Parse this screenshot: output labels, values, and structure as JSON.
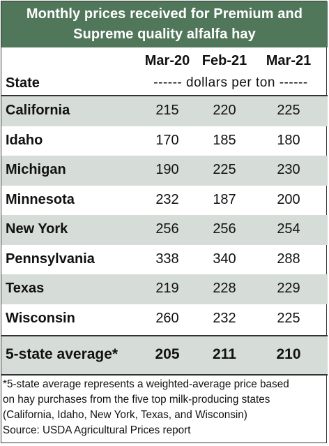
{
  "chart_data": {
    "type": "table",
    "title": [
      "Monthly prices received for Premium and",
      "Supreme quality alfalfa hay"
    ],
    "columns": [
      "Mar-20",
      "Feb-21",
      "Mar-21"
    ],
    "row_header": "State",
    "unit_label": "------ dollars per ton ------",
    "rows": [
      {
        "state": "California",
        "values": [
          "215",
          "220",
          "225"
        ]
      },
      {
        "state": "Idaho",
        "values": [
          "170",
          "185",
          "180"
        ]
      },
      {
        "state": "Michigan",
        "values": [
          "190",
          "225",
          "230"
        ]
      },
      {
        "state": "Minnesota",
        "values": [
          "232",
          "187",
          "200"
        ]
      },
      {
        "state": "New York",
        "values": [
          "256",
          "256",
          "254"
        ]
      },
      {
        "state": "Pennsylvania",
        "values": [
          "338",
          "340",
          "288"
        ]
      },
      {
        "state": "Texas",
        "values": [
          "219",
          "228",
          "229"
        ]
      },
      {
        "state": "Wisconsin",
        "values": [
          "260",
          "232",
          "225"
        ]
      }
    ],
    "average": {
      "label": "5-state average*",
      "values": [
        "205",
        "211",
        "210"
      ]
    },
    "footnote": [
      "*5-state average represents  a weighted-average price based",
      "on hay purchases from the five top milk-producing states",
      "(California, Idaho, New York, Texas, and Wisconsin)",
      "Source: USDA Agricultural Prices report"
    ]
  },
  "colors": {
    "header": "#50775a",
    "band": "#d6ddd9"
  }
}
